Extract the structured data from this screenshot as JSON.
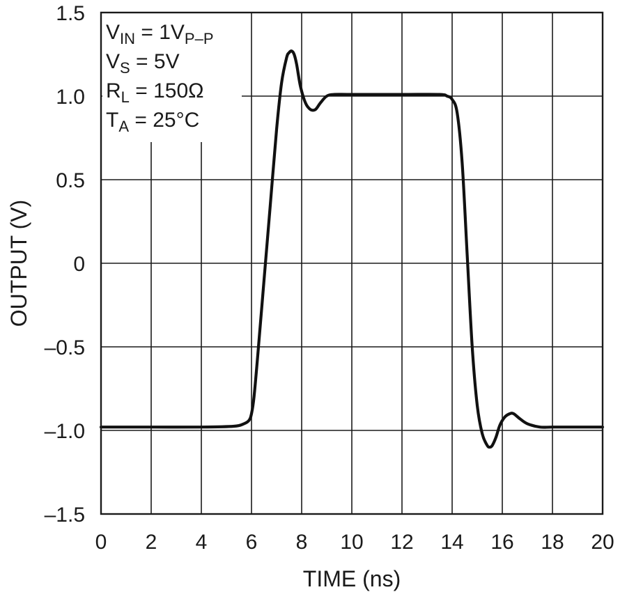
{
  "chart_data": {
    "type": "line",
    "title": "",
    "xlabel": "TIME (ns)",
    "ylabel": "OUTPUT (V)",
    "xlim": [
      0,
      20
    ],
    "ylim": [
      -1.5,
      1.5
    ],
    "x_ticks": [
      0,
      2,
      4,
      6,
      8,
      10,
      12,
      14,
      16,
      18,
      20
    ],
    "x_tick_labels": [
      "0",
      "2",
      "4",
      "6",
      "8",
      "10",
      "12",
      "14",
      "16",
      "18",
      "20"
    ],
    "y_ticks": [
      1.5,
      1.0,
      0.5,
      0,
      -0.5,
      -1.0,
      -1.5
    ],
    "y_tick_labels": [
      "1.5",
      "1.0",
      "0.5",
      "0",
      "–0.5",
      "–1.0",
      "–1.5"
    ],
    "grid": true,
    "conditions": [
      {
        "main": "V",
        "sub": "IN",
        "rest": " = 1V",
        "sub2": "P–P"
      },
      {
        "main": "V",
        "sub": "S",
        "rest": " = 5V",
        "sub2": ""
      },
      {
        "main": "R",
        "sub": "L",
        "rest": " = 150Ω",
        "sub2": ""
      },
      {
        "main": "T",
        "sub": "A",
        "rest": " = 25°C",
        "sub2": ""
      }
    ],
    "series": [
      {
        "x": [
          0,
          2,
          4,
          5.3,
          5.7,
          5.9,
          6.0,
          6.1,
          6.25,
          6.5,
          6.75,
          7.0,
          7.2,
          7.4,
          7.5,
          7.6,
          7.7,
          7.8,
          7.95,
          8.15,
          8.35,
          8.55,
          8.75,
          9.0,
          9.3,
          10,
          12,
          13.5,
          13.8,
          14.0,
          14.2,
          14.4,
          14.6,
          14.8,
          15.0,
          15.2,
          15.4,
          15.5,
          15.6,
          15.75,
          15.9,
          16.1,
          16.3,
          16.45,
          16.7,
          17.0,
          17.5,
          18,
          19,
          20
        ],
        "y": [
          -0.98,
          -0.98,
          -0.98,
          -0.975,
          -0.96,
          -0.94,
          -0.9,
          -0.8,
          -0.55,
          -0.1,
          0.35,
          0.8,
          1.08,
          1.23,
          1.26,
          1.27,
          1.25,
          1.19,
          1.06,
          0.96,
          0.92,
          0.92,
          0.96,
          1.0,
          1.01,
          1.01,
          1.01,
          1.01,
          1.0,
          0.98,
          0.9,
          0.6,
          0.05,
          -0.5,
          -0.85,
          -1.02,
          -1.09,
          -1.1,
          -1.09,
          -1.04,
          -0.97,
          -0.92,
          -0.9,
          -0.9,
          -0.93,
          -0.96,
          -0.98,
          -0.98,
          -0.98,
          -0.98
        ]
      }
    ]
  }
}
